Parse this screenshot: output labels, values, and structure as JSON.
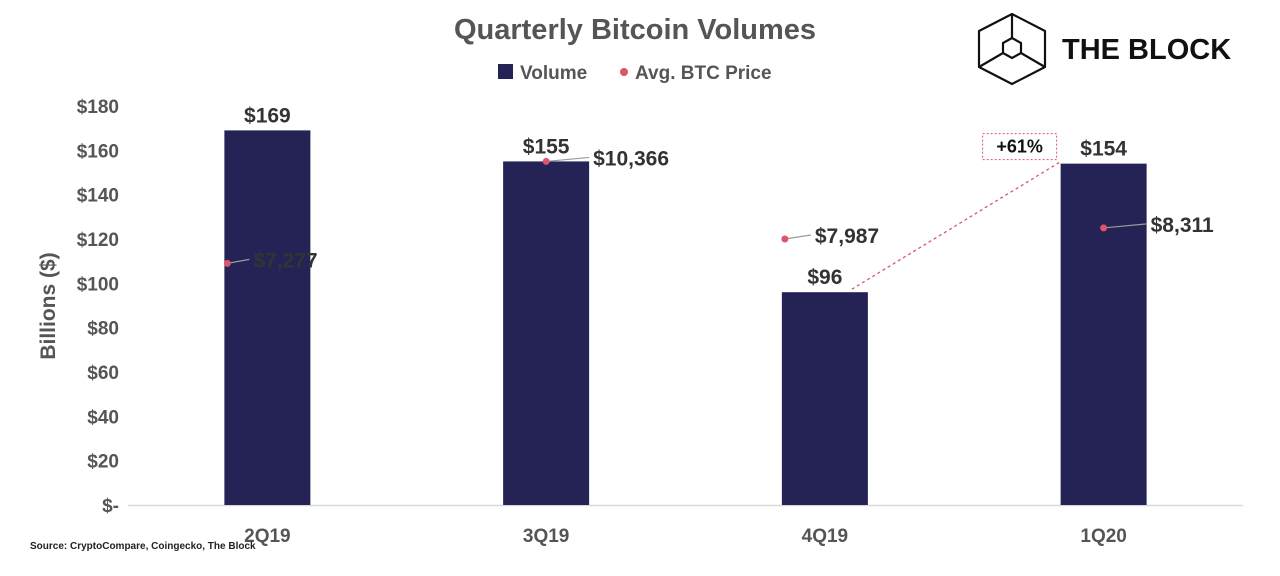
{
  "brand": {
    "name": "THE BLOCK",
    "logo_icon": "cube-outline-icon"
  },
  "source_note": "Source: CryptoCompare, Coingecko, The Block",
  "colors": {
    "bar": "#252356",
    "price_dot": "#d9566b",
    "annotation": "#d9566b",
    "axis_text": "#555555",
    "title_text": "#555555",
    "label_text": "#333333",
    "leader_line": "#9a9a9a",
    "baseline": "#d9d9d9"
  },
  "chart_data": {
    "type": "bar",
    "title": "Quarterly Bitcoin Volumes",
    "ylabel": "Billions ($)",
    "xlabel": "",
    "ylim": [
      0,
      180
    ],
    "yticks": [
      0,
      20,
      40,
      60,
      80,
      100,
      120,
      140,
      160,
      180
    ],
    "ytick_labels": [
      "$-",
      "$20",
      "$40",
      "$60",
      "$80",
      "$100",
      "$120",
      "$140",
      "$160",
      "$180"
    ],
    "categories": [
      "2Q19",
      "3Q19",
      "4Q19",
      "1Q20"
    ],
    "legend": {
      "placement": "top-center",
      "items": [
        "Volume",
        "Avg. BTC Price"
      ]
    },
    "series": [
      {
        "name": "Volume",
        "kind": "bar",
        "values": [
          169,
          155,
          96,
          154
        ],
        "labels": [
          "$169",
          "$155",
          "$96",
          "$154"
        ]
      },
      {
        "name": "Avg. BTC Price",
        "kind": "point",
        "values": [
          7277,
          10366,
          7987,
          8311
        ],
        "labels": [
          "$7,277",
          "$10,366",
          "$7,987",
          "$8,311"
        ],
        "plotted_on_volume_axis_as": [
          109,
          155,
          120,
          125
        ]
      }
    ],
    "annotations": [
      {
        "text": "+61%",
        "from_category": "4Q19",
        "to_category": "1Q20"
      }
    ],
    "grid": false
  }
}
